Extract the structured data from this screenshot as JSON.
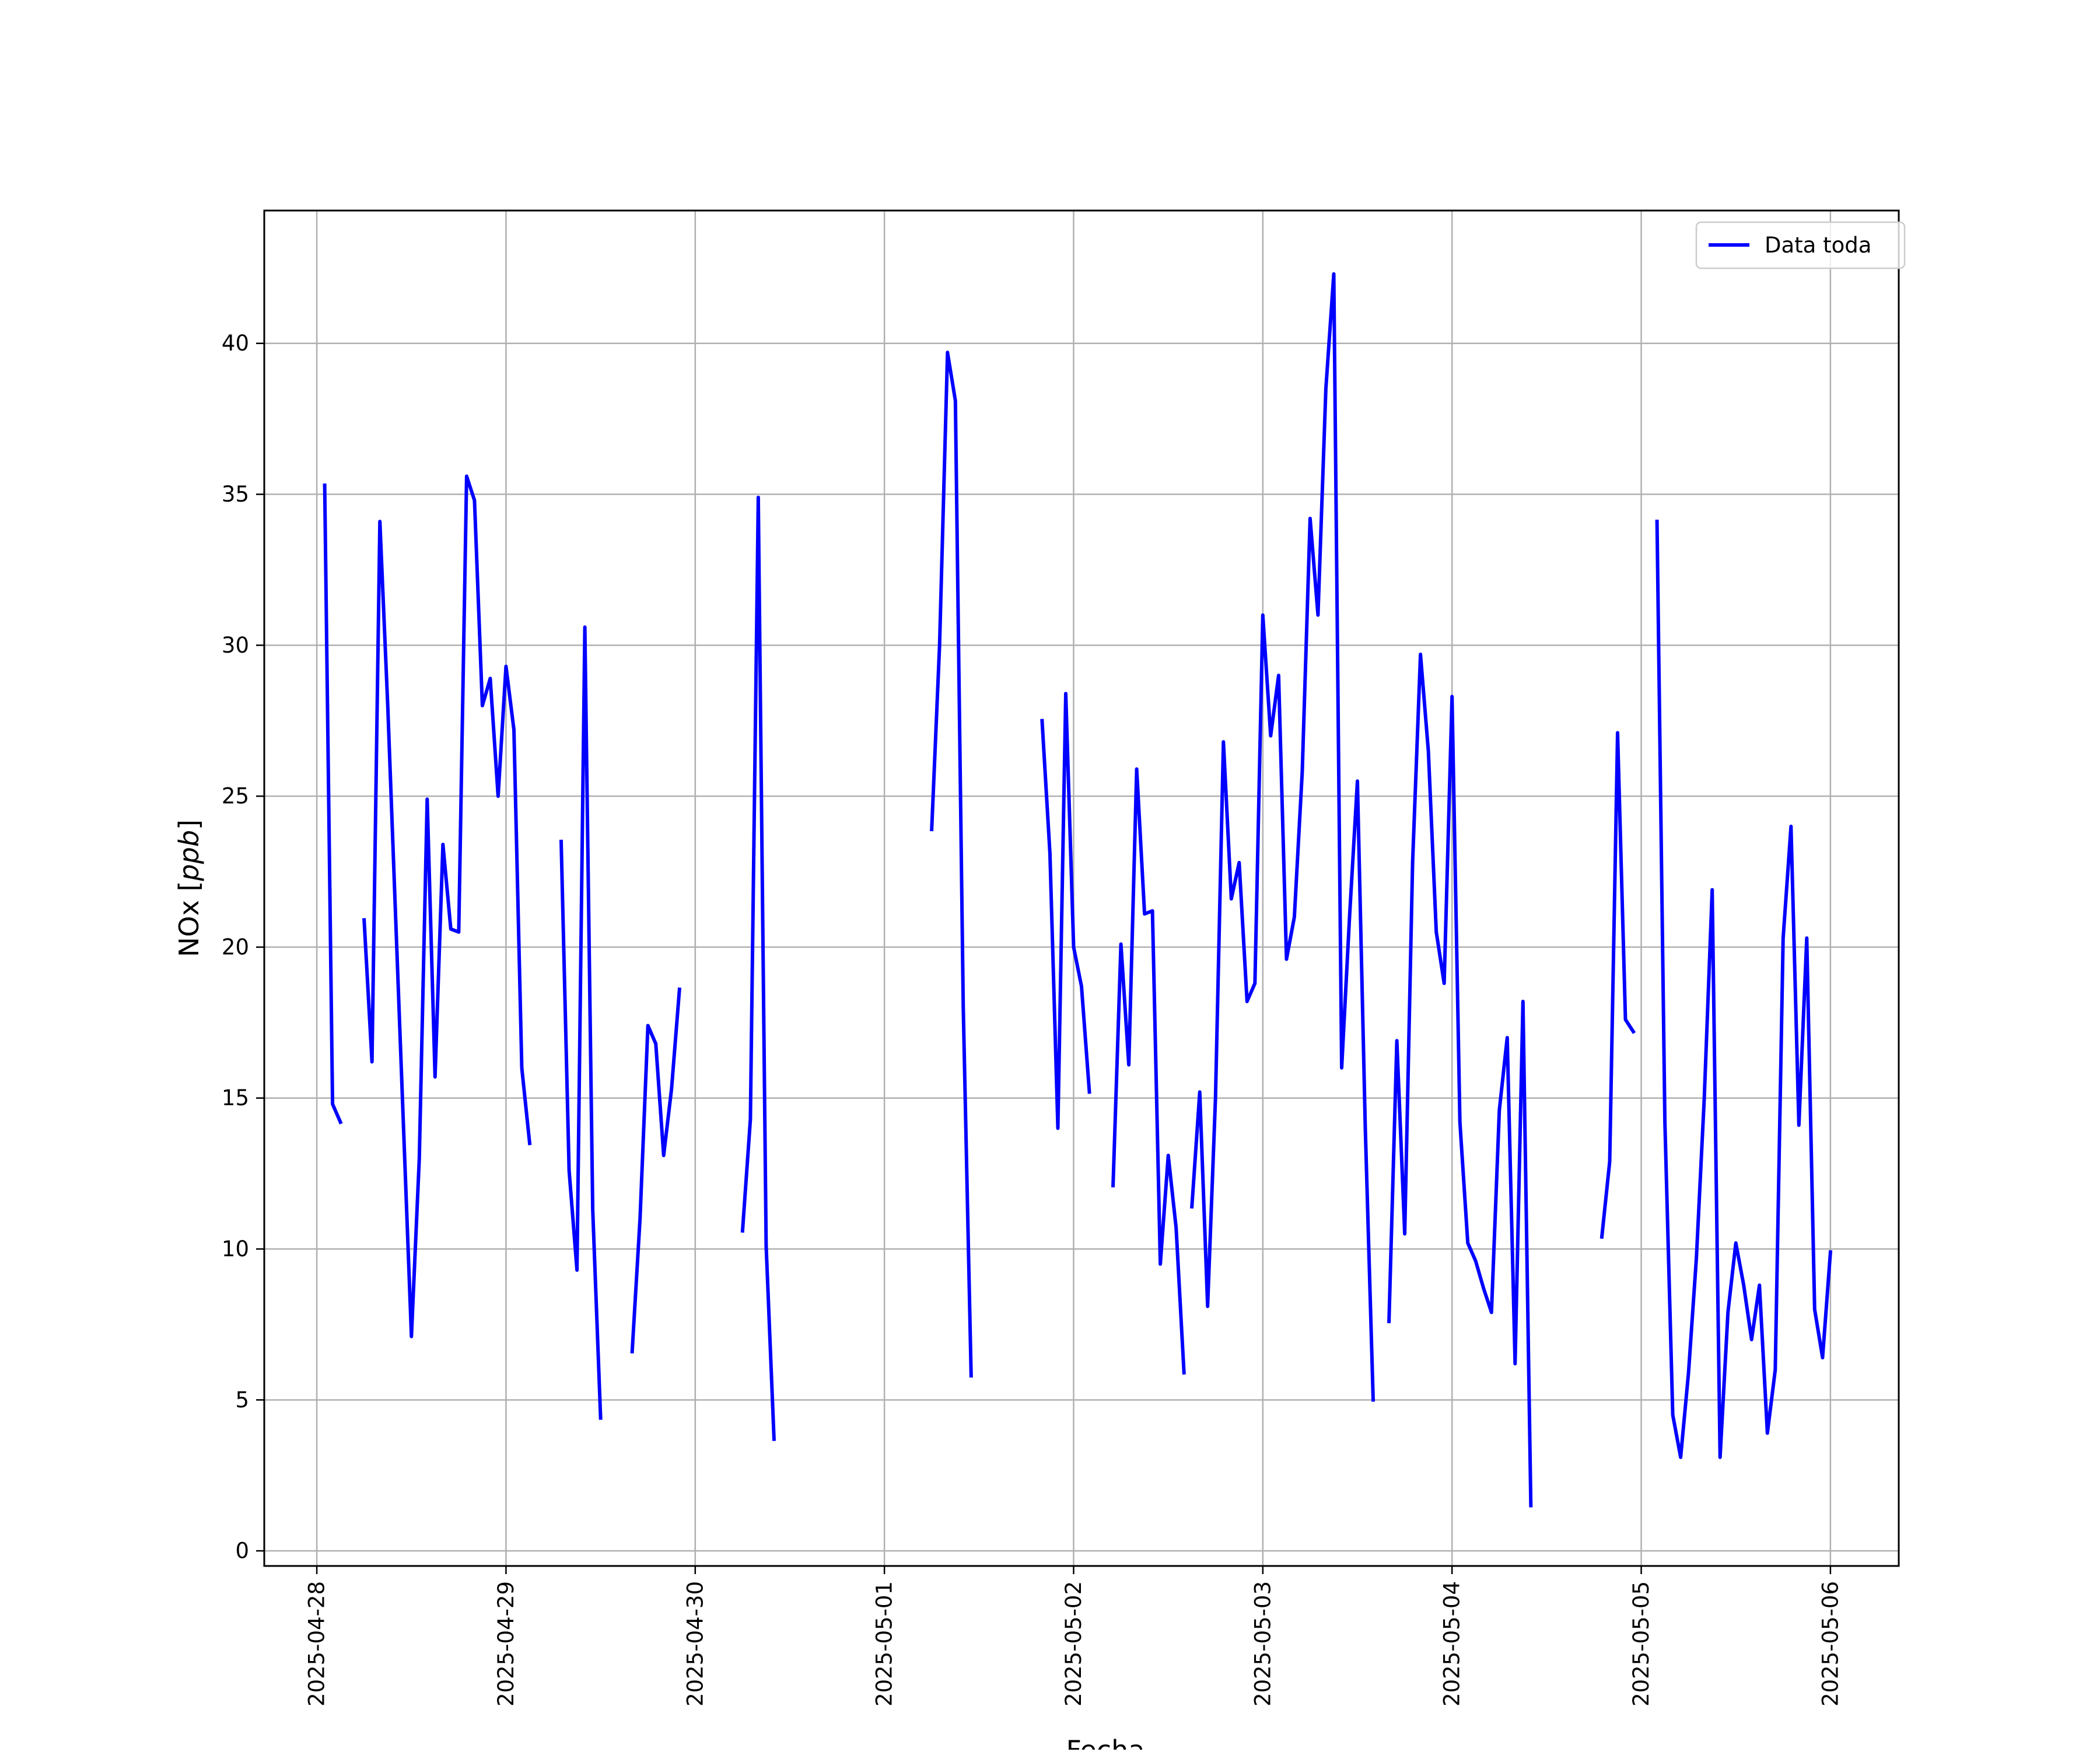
{
  "chart_data": {
    "type": "line",
    "xlabel": "Fecha",
    "ylabel": "NOx [ppb]",
    "ylabel_parts": {
      "prefix": "NOx [",
      "unit_italic": "ppb",
      "suffix": "]"
    },
    "xlim": [
      "2025-04-27T17:20",
      "2025-05-06T08:40"
    ],
    "ylim": [
      -0.5,
      44.4
    ],
    "grid": true,
    "legend_position": "top-right",
    "x_ticks": [
      "2025-04-28",
      "2025-04-29",
      "2025-04-30",
      "2025-05-01",
      "2025-05-02",
      "2025-05-03",
      "2025-05-04",
      "2025-05-05",
      "2025-05-06"
    ],
    "y_ticks": [
      0,
      5,
      10,
      15,
      20,
      25,
      30,
      35,
      40
    ],
    "series": [
      {
        "name": "Data toda",
        "color": "#0000ff",
        "segments": [
          [
            [
              "2025-04-28T01:00",
              35.3
            ],
            [
              "2025-04-28T02:00",
              14.8
            ],
            [
              "2025-04-28T03:00",
              14.2
            ]
          ],
          [
            [
              "2025-04-28T06:00",
              20.9
            ],
            [
              "2025-04-28T07:00",
              16.2
            ],
            [
              "2025-04-28T08:00",
              34.1
            ],
            [
              "2025-04-28T09:00",
              28.0
            ],
            [
              "2025-04-28T10:00",
              21.0
            ],
            [
              "2025-04-28T11:00",
              14.0
            ],
            [
              "2025-04-28T12:00",
              7.1
            ],
            [
              "2025-04-28T13:00",
              13.0
            ],
            [
              "2025-04-28T14:00",
              24.9
            ],
            [
              "2025-04-28T15:00",
              15.7
            ],
            [
              "2025-04-28T16:00",
              23.4
            ],
            [
              "2025-04-28T17:00",
              20.6
            ],
            [
              "2025-04-28T18:00",
              20.5
            ],
            [
              "2025-04-28T19:00",
              35.6
            ],
            [
              "2025-04-28T20:00",
              34.8
            ],
            [
              "2025-04-28T21:00",
              28.0
            ],
            [
              "2025-04-28T22:00",
              28.9
            ],
            [
              "2025-04-28T23:00",
              25.0
            ],
            [
              "2025-04-29T00:00",
              29.3
            ],
            [
              "2025-04-29T01:00",
              27.2
            ],
            [
              "2025-04-29T02:00",
              16.0
            ],
            [
              "2025-04-29T03:00",
              13.5
            ]
          ],
          [
            [
              "2025-04-29T07:00",
              23.5
            ],
            [
              "2025-04-29T08:00",
              12.6
            ],
            [
              "2025-04-29T09:00",
              9.3
            ],
            [
              "2025-04-29T10:00",
              30.6
            ],
            [
              "2025-04-29T11:00",
              11.3
            ],
            [
              "2025-04-29T12:00",
              4.4
            ]
          ],
          [
            [
              "2025-04-29T16:00",
              6.6
            ],
            [
              "2025-04-29T17:00",
              11.0
            ],
            [
              "2025-04-29T18:00",
              17.4
            ],
            [
              "2025-04-29T19:00",
              16.8
            ],
            [
              "2025-04-29T20:00",
              13.1
            ],
            [
              "2025-04-29T21:00",
              15.3
            ],
            [
              "2025-04-29T22:00",
              18.6
            ]
          ],
          [
            [
              "2025-04-30T06:00",
              10.6
            ],
            [
              "2025-04-30T07:00",
              14.3
            ],
            [
              "2025-04-30T08:00",
              34.9
            ],
            [
              "2025-04-30T09:00",
              10.1
            ],
            [
              "2025-04-30T10:00",
              3.7
            ]
          ],
          [
            [
              "2025-05-01T06:00",
              23.9
            ],
            [
              "2025-05-01T07:00",
              30.0
            ],
            [
              "2025-05-01T08:00",
              39.7
            ],
            [
              "2025-05-01T09:00",
              38.1
            ],
            [
              "2025-05-01T10:00",
              18.0
            ],
            [
              "2025-05-01T11:00",
              5.8
            ]
          ],
          [
            [
              "2025-05-01T20:00",
              27.5
            ],
            [
              "2025-05-01T21:00",
              23.1
            ],
            [
              "2025-05-01T22:00",
              14.0
            ],
            [
              "2025-05-01T23:00",
              28.4
            ],
            [
              "2025-05-02T00:00",
              20.0
            ],
            [
              "2025-05-02T01:00",
              18.7
            ],
            [
              "2025-05-02T02:00",
              15.2
            ]
          ],
          [
            [
              "2025-05-02T05:00",
              12.1
            ],
            [
              "2025-05-02T06:00",
              20.1
            ],
            [
              "2025-05-02T07:00",
              16.1
            ],
            [
              "2025-05-02T08:00",
              25.9
            ],
            [
              "2025-05-02T09:00",
              21.1
            ],
            [
              "2025-05-02T10:00",
              21.2
            ],
            [
              "2025-05-02T11:00",
              9.5
            ],
            [
              "2025-05-02T12:00",
              13.1
            ],
            [
              "2025-05-02T13:00",
              10.7
            ],
            [
              "2025-05-02T14:00",
              5.9
            ]
          ],
          [
            [
              "2025-05-02T15:00",
              11.4
            ],
            [
              "2025-05-02T16:00",
              15.2
            ],
            [
              "2025-05-02T17:00",
              8.1
            ],
            [
              "2025-05-02T18:00",
              15.0
            ],
            [
              "2025-05-02T19:00",
              26.8
            ],
            [
              "2025-05-02T20:00",
              21.6
            ],
            [
              "2025-05-02T21:00",
              22.8
            ],
            [
              "2025-05-02T22:00",
              18.2
            ],
            [
              "2025-05-02T23:00",
              18.8
            ],
            [
              "2025-05-03T00:00",
              31.0
            ],
            [
              "2025-05-03T01:00",
              27.0
            ],
            [
              "2025-05-03T02:00",
              29.0
            ],
            [
              "2025-05-03T03:00",
              19.6
            ],
            [
              "2025-05-03T04:00",
              21.0
            ],
            [
              "2025-05-03T05:00",
              25.8
            ],
            [
              "2025-05-03T06:00",
              34.2
            ],
            [
              "2025-05-03T07:00",
              31.0
            ],
            [
              "2025-05-03T08:00",
              38.5
            ],
            [
              "2025-05-03T09:00",
              42.3
            ],
            [
              "2025-05-03T10:00",
              16.0
            ],
            [
              "2025-05-03T11:00",
              21.0
            ],
            [
              "2025-05-03T12:00",
              25.5
            ],
            [
              "2025-05-03T13:00",
              14.0
            ],
            [
              "2025-05-03T14:00",
              5.0
            ]
          ],
          [
            [
              "2025-05-03T16:00",
              7.6
            ],
            [
              "2025-05-03T17:00",
              16.9
            ],
            [
              "2025-05-03T18:00",
              10.5
            ],
            [
              "2025-05-03T19:00",
              22.8
            ],
            [
              "2025-05-03T20:00",
              29.7
            ],
            [
              "2025-05-03T21:00",
              26.5
            ],
            [
              "2025-05-03T22:00",
              20.5
            ],
            [
              "2025-05-03T23:00",
              18.8
            ],
            [
              "2025-05-04T00:00",
              28.3
            ],
            [
              "2025-05-04T01:00",
              14.2
            ],
            [
              "2025-05-04T02:00",
              10.2
            ],
            [
              "2025-05-04T03:00",
              9.6
            ],
            [
              "2025-05-04T04:00",
              8.7
            ],
            [
              "2025-05-04T05:00",
              7.9
            ],
            [
              "2025-05-04T06:00",
              14.6
            ],
            [
              "2025-05-04T07:00",
              17.0
            ],
            [
              "2025-05-04T08:00",
              6.2
            ],
            [
              "2025-05-04T09:00",
              18.2
            ],
            [
              "2025-05-04T10:00",
              1.5
            ]
          ],
          [
            [
              "2025-05-04T19:00",
              10.4
            ],
            [
              "2025-05-04T20:00",
              12.9
            ],
            [
              "2025-05-04T21:00",
              27.1
            ],
            [
              "2025-05-04T22:00",
              17.6
            ],
            [
              "2025-05-04T23:00",
              17.2
            ]
          ],
          [
            [
              "2025-05-05T02:00",
              34.1
            ],
            [
              "2025-05-05T03:00",
              14.2
            ],
            [
              "2025-05-05T04:00",
              4.5
            ],
            [
              "2025-05-05T05:00",
              3.1
            ],
            [
              "2025-05-05T06:00",
              5.9
            ],
            [
              "2025-05-05T07:00",
              9.7
            ],
            [
              "2025-05-05T08:00",
              15.0
            ],
            [
              "2025-05-05T09:00",
              21.9
            ],
            [
              "2025-05-05T10:00",
              3.1
            ],
            [
              "2025-05-05T11:00",
              7.9
            ],
            [
              "2025-05-05T12:00",
              10.2
            ],
            [
              "2025-05-05T13:00",
              8.8
            ],
            [
              "2025-05-05T14:00",
              7.0
            ],
            [
              "2025-05-05T15:00",
              8.8
            ],
            [
              "2025-05-05T16:00",
              3.9
            ],
            [
              "2025-05-05T17:00",
              6.0
            ],
            [
              "2025-05-05T18:00",
              20.3
            ],
            [
              "2025-05-05T19:00",
              24.0
            ],
            [
              "2025-05-05T20:00",
              14.1
            ],
            [
              "2025-05-05T21:00",
              20.3
            ],
            [
              "2025-05-05T22:00",
              8.0
            ],
            [
              "2025-05-05T23:00",
              6.4
            ],
            [
              "2025-05-06T00:00",
              9.9
            ]
          ]
        ]
      }
    ]
  }
}
